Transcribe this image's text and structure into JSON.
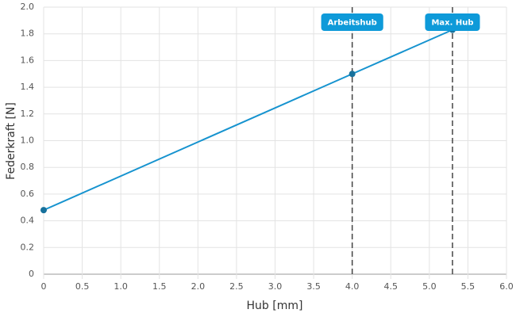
{
  "chart_data": {
    "type": "line",
    "xlabel": "Hub [mm]",
    "ylabel": "Federkraft [N]",
    "x": [
      0,
      4,
      5.3
    ],
    "series": [
      {
        "name": "Federkraft",
        "color": "#1693cf",
        "values": [
          0.48,
          1.5,
          1.83
        ]
      }
    ],
    "xlim": [
      0,
      6
    ],
    "ylim": [
      0,
      2
    ],
    "xticks": [
      0,
      0.5,
      {
        "value": 1,
        "label": "1.0"
      },
      1.5,
      {
        "value": 2,
        "label": "2.0"
      },
      2.5,
      {
        "value": 3,
        "label": "3.0"
      },
      3.5,
      {
        "value": 4,
        "label": "4.0"
      },
      4.5,
      {
        "value": 5,
        "label": "5.0"
      },
      5.5,
      {
        "value": 6,
        "label": "6.0"
      }
    ],
    "yticks": [
      0,
      0.2,
      0.4,
      0.6,
      0.8,
      {
        "value": 1,
        "label": "1.0"
      },
      1.2,
      1.4,
      1.6,
      1.8,
      {
        "value": 2,
        "label": "2.0"
      }
    ],
    "grid": true,
    "annotations": [
      {
        "x": 4,
        "label": "Arbeitshub"
      },
      {
        "x": 5.3,
        "label": "Max. Hub"
      }
    ]
  }
}
